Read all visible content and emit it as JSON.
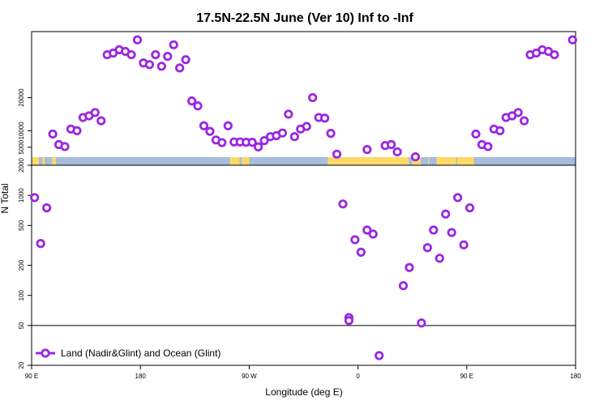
{
  "chart_data": {
    "type": "scatter",
    "title": "17.5N-22.5N June (Ver 10)   Inf to -Inf",
    "xlabel": "Longitude (deg E)",
    "ylabel": "N Total",
    "x_ticks": [
      {
        "value": 90,
        "label": "90 E"
      },
      {
        "value": 180,
        "label": "180"
      },
      {
        "value": 270,
        "label": "90 W"
      },
      {
        "value": 360,
        "label": "0"
      },
      {
        "value": 450,
        "label": "90 E"
      },
      {
        "value": 540,
        "label": "180"
      }
    ],
    "xlim": [
      90,
      540
    ],
    "upper_panel": {
      "ylim": [
        2000,
        40000
      ],
      "y_ticks": [
        {
          "value": 5000,
          "label": "5000"
        },
        {
          "value": 10000,
          "label": "10000"
        },
        {
          "value": 20000,
          "label": "20000"
        }
      ]
    },
    "lower_panel": {
      "ylim": [
        20,
        2000
      ],
      "scale": "log",
      "y_ticks": [
        {
          "value": 20,
          "label": "20"
        },
        {
          "value": 50,
          "label": "50"
        },
        {
          "value": 100,
          "label": "100"
        },
        {
          "value": 200,
          "label": "200"
        },
        {
          "value": 500,
          "label": "500"
        },
        {
          "value": 1000,
          "label": "1000"
        },
        {
          "value": 2000,
          "label": "2000"
        }
      ],
      "reference_line": 50
    },
    "land_sea_strip": {
      "land_color": "#FFD966",
      "ocean_color": "#A6BDDB"
    },
    "grid": false,
    "legend": {
      "placement": "bottom-left"
    },
    "series": [
      {
        "name": "Land (Nadir&Glint) and Ocean (Glint)",
        "color": "#9B27E0",
        "points": [
          {
            "x": 92.5,
            "y": 950
          },
          {
            "x": 97.5,
            "y": 330
          },
          {
            "x": 102.5,
            "y": 750
          },
          {
            "x": 107.5,
            "y": 9000
          },
          {
            "x": 112.5,
            "y": 5800
          },
          {
            "x": 117.5,
            "y": 5200
          },
          {
            "x": 122.5,
            "y": 10500
          },
          {
            "x": 127.5,
            "y": 10000
          },
          {
            "x": 132.5,
            "y": 14000
          },
          {
            "x": 137.5,
            "y": 14500
          },
          {
            "x": 142.5,
            "y": 15500
          },
          {
            "x": 147.5,
            "y": 13000
          },
          {
            "x": 152.5,
            "y": 33000
          },
          {
            "x": 157.5,
            "y": 33500
          },
          {
            "x": 162.5,
            "y": 34500
          },
          {
            "x": 167.5,
            "y": 34000
          },
          {
            "x": 172.5,
            "y": 33000
          },
          {
            "x": 177.5,
            "y": 37500
          },
          {
            "x": 182.5,
            "y": 30500
          },
          {
            "x": 187.5,
            "y": 30000
          },
          {
            "x": 192.5,
            "y": 33000
          },
          {
            "x": 197.5,
            "y": 29500
          },
          {
            "x": 202.5,
            "y": 32500
          },
          {
            "x": 207.5,
            "y": 36000
          },
          {
            "x": 212.5,
            "y": 29000
          },
          {
            "x": 217.5,
            "y": 31500
          },
          {
            "x": 222.5,
            "y": 19000
          },
          {
            "x": 227.5,
            "y": 17500
          },
          {
            "x": 232.5,
            "y": 11500
          },
          {
            "x": 237.5,
            "y": 9800
          },
          {
            "x": 242.5,
            "y": 7200
          },
          {
            "x": 247.5,
            "y": 6400
          },
          {
            "x": 252.5,
            "y": 11500
          },
          {
            "x": 257.5,
            "y": 6600
          },
          {
            "x": 262.5,
            "y": 6600
          },
          {
            "x": 267.5,
            "y": 6500
          },
          {
            "x": 272.5,
            "y": 6500
          },
          {
            "x": 277.5,
            "y": 5100
          },
          {
            "x": 282.5,
            "y": 7000
          },
          {
            "x": 287.5,
            "y": 8200
          },
          {
            "x": 292.5,
            "y": 8500
          },
          {
            "x": 297.5,
            "y": 9300
          },
          {
            "x": 302.5,
            "y": 15000
          },
          {
            "x": 307.5,
            "y": 8200
          },
          {
            "x": 312.5,
            "y": 10500
          },
          {
            "x": 317.5,
            "y": 11300
          },
          {
            "x": 322.5,
            "y": 20000
          },
          {
            "x": 327.5,
            "y": 14000
          },
          {
            "x": 332.5,
            "y": 13800
          },
          {
            "x": 337.5,
            "y": 9200
          },
          {
            "x": 342.5,
            "y": 2900
          },
          {
            "x": 347.5,
            "y": 820
          },
          {
            "x": 352.5,
            "y": 60
          },
          {
            "x": 352.5,
            "y": 56
          },
          {
            "x": 357.5,
            "y": 360
          },
          {
            "x": 362.5,
            "y": 270
          },
          {
            "x": 367.5,
            "y": 450
          },
          {
            "x": 367.5,
            "y": 4300
          },
          {
            "x": 372.5,
            "y": 410
          },
          {
            "x": 377.5,
            "y": 25
          },
          {
            "x": 382.5,
            "y": 5500
          },
          {
            "x": 387.5,
            "y": 5800
          },
          {
            "x": 392.5,
            "y": 3600
          },
          {
            "x": 397.5,
            "y": 125
          },
          {
            "x": 402.5,
            "y": 190
          },
          {
            "x": 407.5,
            "y": 2100
          },
          {
            "x": 412.5,
            "y": 53
          },
          {
            "x": 417.5,
            "y": 300
          },
          {
            "x": 422.5,
            "y": 450
          },
          {
            "x": 427.5,
            "y": 235
          },
          {
            "x": 432.5,
            "y": 650
          },
          {
            "x": 437.5,
            "y": 425
          },
          {
            "x": 442.5,
            "y": 950
          },
          {
            "x": 447.5,
            "y": 320
          },
          {
            "x": 452.5,
            "y": 750
          },
          {
            "x": 457.5,
            "y": 9000
          },
          {
            "x": 462.5,
            "y": 5800
          },
          {
            "x": 467.5,
            "y": 5200
          },
          {
            "x": 472.5,
            "y": 10500
          },
          {
            "x": 477.5,
            "y": 10000
          },
          {
            "x": 482.5,
            "y": 14000
          },
          {
            "x": 487.5,
            "y": 14500
          },
          {
            "x": 492.5,
            "y": 15500
          },
          {
            "x": 497.5,
            "y": 13000
          },
          {
            "x": 502.5,
            "y": 33000
          },
          {
            "x": 507.5,
            "y": 33500
          },
          {
            "x": 512.5,
            "y": 34500
          },
          {
            "x": 517.5,
            "y": 34000
          },
          {
            "x": 522.5,
            "y": 33000
          },
          {
            "x": 537.5,
            "y": 37500
          }
        ]
      }
    ]
  }
}
